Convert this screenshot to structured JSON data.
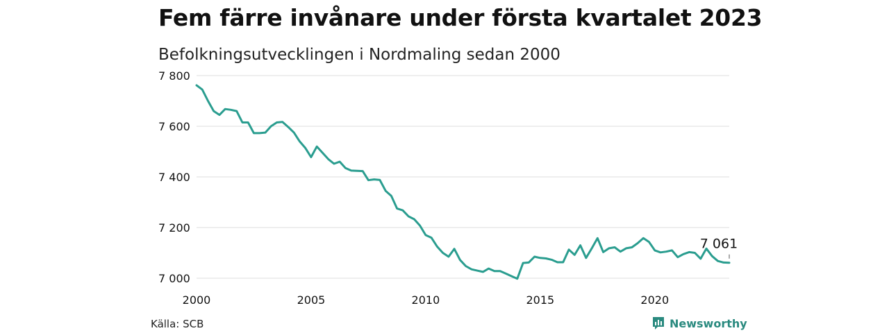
{
  "header": {
    "title": "Fem färre invånare under första kvartalet 2023",
    "subtitle": "Befolkningsutvecklingen i Nordmaling sedan 2000"
  },
  "footer": {
    "source": "Källa: SCB",
    "brand": "Newsworthy"
  },
  "colors": {
    "line": "#2a9d8f",
    "grid": "#dcdcdc",
    "brand": "#2a8a7f"
  },
  "chart_data": {
    "type": "line",
    "title": "Fem färre invånare under första kvartalet 2023",
    "subtitle": "Befolkningsutvecklingen i Nordmaling sedan 2000",
    "x_ticks": [
      2000,
      2005,
      2010,
      2015,
      2020
    ],
    "x_tick_labels": [
      "2000",
      "2005",
      "2010",
      "2015",
      "2020"
    ],
    "y_ticks": [
      7000,
      7200,
      7400,
      7600,
      7800
    ],
    "y_tick_labels": [
      "7 000",
      "7 200",
      "7 400",
      "7 600",
      "7 800"
    ],
    "ylim": [
      7000,
      7800
    ],
    "xlim": [
      2000,
      2023.25
    ],
    "grid": true,
    "end_label": "7 061",
    "series": [
      {
        "x": [
          2000.0,
          2000.25,
          2000.5,
          2000.75,
          2001.0,
          2001.25,
          2001.5,
          2001.75,
          2002.0,
          2002.25,
          2002.5,
          2002.75,
          2003.0,
          2003.25,
          2003.5,
          2003.75,
          2004.0,
          2004.25,
          2004.5,
          2004.75,
          2005.0,
          2005.25,
          2005.5,
          2005.75,
          2006.0,
          2006.25,
          2006.5,
          2006.75,
          2007.0,
          2007.25,
          2007.5,
          2007.75,
          2008.0,
          2008.25,
          2008.5,
          2008.75,
          2009.0,
          2009.25,
          2009.5,
          2009.75,
          2010.0,
          2010.25,
          2010.5,
          2010.75,
          2011.0,
          2011.25,
          2011.5,
          2011.75,
          2012.0,
          2012.25,
          2012.5,
          2012.75,
          2013.0,
          2013.25,
          2013.5,
          2013.75,
          2014.0,
          2014.25,
          2014.5,
          2014.75,
          2015.0,
          2015.25,
          2015.5,
          2015.75,
          2016.0,
          2016.25,
          2016.5,
          2016.75,
          2017.0,
          2017.25,
          2017.5,
          2017.75,
          2018.0,
          2018.25,
          2018.5,
          2018.75,
          2019.0,
          2019.25,
          2019.5,
          2019.75,
          2020.0,
          2020.25,
          2020.5,
          2020.75,
          2021.0,
          2021.25,
          2021.5,
          2021.75,
          2022.0,
          2022.25,
          2022.5,
          2022.75,
          2023.0,
          2023.25
        ],
        "values": [
          7762,
          7745,
          7700,
          7660,
          7645,
          7668,
          7665,
          7660,
          7615,
          7615,
          7573,
          7573,
          7575,
          7600,
          7615,
          7617,
          7597,
          7575,
          7540,
          7514,
          7478,
          7520,
          7495,
          7470,
          7452,
          7460,
          7435,
          7425,
          7424,
          7423,
          7387,
          7390,
          7388,
          7345,
          7325,
          7275,
          7268,
          7244,
          7233,
          7208,
          7170,
          7160,
          7125,
          7100,
          7085,
          7116,
          7072,
          7048,
          7035,
          7030,
          7025,
          7038,
          7028,
          7028,
          7018,
          7008,
          6998,
          7060,
          7062,
          7085,
          7080,
          7078,
          7073,
          7063,
          7063,
          7113,
          7092,
          7130,
          7080,
          7118,
          7158,
          7103,
          7118,
          7122,
          7105,
          7118,
          7122,
          7138,
          7158,
          7143,
          7110,
          7102,
          7105,
          7110,
          7083,
          7095,
          7103,
          7100,
          7077,
          7117,
          7087,
          7068,
          7062,
          7061
        ]
      }
    ]
  }
}
